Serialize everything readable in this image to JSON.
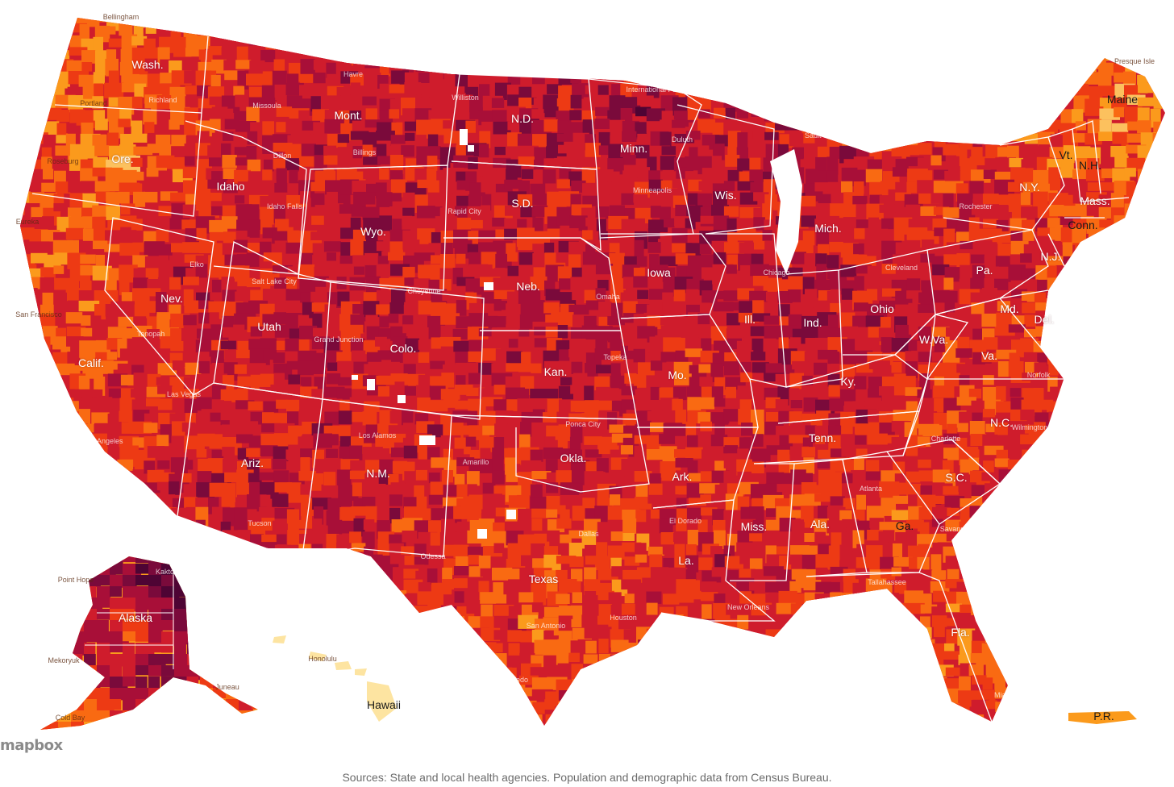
{
  "colors": {
    "c1": "#fde4a1",
    "c2": "#fcc15e",
    "c3": "#fb9a1c",
    "c4": "#f96a12",
    "c5": "#ed3a14",
    "c6": "#cf1c2c",
    "c7": "#a80f38",
    "c8": "#7a0a3b",
    "c9": "#4e0434",
    "border": "#ffffff"
  },
  "states": [
    {
      "key": "wa",
      "label": "Wash."
    },
    {
      "key": "or",
      "label": "Ore."
    },
    {
      "key": "ca",
      "label": "Calif."
    },
    {
      "key": "nv",
      "label": "Nev."
    },
    {
      "key": "id",
      "label": "Idaho"
    },
    {
      "key": "mt",
      "label": "Mont."
    },
    {
      "key": "wy",
      "label": "Wyo."
    },
    {
      "key": "ut",
      "label": "Utah"
    },
    {
      "key": "az",
      "label": "Ariz."
    },
    {
      "key": "co",
      "label": "Colo."
    },
    {
      "key": "nm",
      "label": "N.M."
    },
    {
      "key": "nd",
      "label": "N.D."
    },
    {
      "key": "sd",
      "label": "S.D."
    },
    {
      "key": "ne",
      "label": "Neb."
    },
    {
      "key": "ks",
      "label": "Kan."
    },
    {
      "key": "ok",
      "label": "Okla."
    },
    {
      "key": "tx",
      "label": "Texas"
    },
    {
      "key": "mn",
      "label": "Minn."
    },
    {
      "key": "ia",
      "label": "Iowa"
    },
    {
      "key": "mo",
      "label": "Mo."
    },
    {
      "key": "ar",
      "label": "Ark."
    },
    {
      "key": "la",
      "label": "La."
    },
    {
      "key": "wi",
      "label": "Wis."
    },
    {
      "key": "il",
      "label": "Ill."
    },
    {
      "key": "mi",
      "label": "Mich."
    },
    {
      "key": "in",
      "label": "Ind."
    },
    {
      "key": "oh",
      "label": "Ohio"
    },
    {
      "key": "ky",
      "label": "Ky."
    },
    {
      "key": "tn",
      "label": "Tenn."
    },
    {
      "key": "ms",
      "label": "Miss."
    },
    {
      "key": "al",
      "label": "Ala."
    },
    {
      "key": "ga",
      "label": "Ga."
    },
    {
      "key": "fl",
      "label": "Fla."
    },
    {
      "key": "sc",
      "label": "S.C."
    },
    {
      "key": "nc",
      "label": "N.C."
    },
    {
      "key": "va",
      "label": "Va."
    },
    {
      "key": "wv",
      "label": "W.Va."
    },
    {
      "key": "pa",
      "label": "Pa."
    },
    {
      "key": "ny",
      "label": "N.Y."
    },
    {
      "key": "vt",
      "label": "Vt."
    },
    {
      "key": "nh",
      "label": "N.H."
    },
    {
      "key": "me",
      "label": "Maine"
    },
    {
      "key": "ma",
      "label": "Mass."
    },
    {
      "key": "ct",
      "label": "Conn."
    },
    {
      "key": "nj",
      "label": "N.J."
    },
    {
      "key": "md",
      "label": "Md."
    },
    {
      "key": "de",
      "label": "Del."
    },
    {
      "key": "ak",
      "label": "Alaska"
    },
    {
      "key": "hi",
      "label": "Hawaii"
    },
    {
      "key": "pr",
      "label": "P.R."
    }
  ],
  "cities": [
    {
      "key": "bellingham",
      "label": "Bellingham"
    },
    {
      "key": "portland",
      "label": "Portland"
    },
    {
      "key": "richland",
      "label": "Richland"
    },
    {
      "key": "roseburg",
      "label": "Roseburg"
    },
    {
      "key": "eureka",
      "label": "Eureka"
    },
    {
      "key": "san-francisco",
      "label": "San Francisco"
    },
    {
      "key": "los-angeles",
      "label": "Los Angeles"
    },
    {
      "key": "las-vegas",
      "label": "Las Vegas"
    },
    {
      "key": "tonopah",
      "label": "Tonopah"
    },
    {
      "key": "elko",
      "label": "Elko"
    },
    {
      "key": "idaho-falls",
      "label": "Idaho Falls"
    },
    {
      "key": "missoula",
      "label": "Missoula"
    },
    {
      "key": "havre",
      "label": "Havre"
    },
    {
      "key": "billings",
      "label": "Billings"
    },
    {
      "key": "dillon",
      "label": "Dillon"
    },
    {
      "key": "salt-lake-city",
      "label": "Salt Lake City"
    },
    {
      "key": "grand-junction",
      "label": "Grand Junction"
    },
    {
      "key": "cheyenne",
      "label": "Cheyenne"
    },
    {
      "key": "tucson",
      "label": "Tucson"
    },
    {
      "key": "los-alamos",
      "label": "Los Alamos"
    },
    {
      "key": "williston",
      "label": "Williston"
    },
    {
      "key": "rapid-city",
      "label": "Rapid City"
    },
    {
      "key": "international-falls",
      "label": "International Falls"
    },
    {
      "key": "duluth",
      "label": "Duluth"
    },
    {
      "key": "minneapolis",
      "label": "Minneapolis"
    },
    {
      "key": "omaha",
      "label": "Omaha"
    },
    {
      "key": "topeka",
      "label": "Topeka"
    },
    {
      "key": "ponca-city",
      "label": "Ponca City"
    },
    {
      "key": "amarillo",
      "label": "Amarillo"
    },
    {
      "key": "odessa",
      "label": "Odessa"
    },
    {
      "key": "dallas",
      "label": "Dallas"
    },
    {
      "key": "san-antonio",
      "label": "San Antonio"
    },
    {
      "key": "houston",
      "label": "Houston"
    },
    {
      "key": "laredo",
      "label": "Laredo"
    },
    {
      "key": "el-dorado",
      "label": "El Dorado"
    },
    {
      "key": "new-orleans",
      "label": "New Orleans"
    },
    {
      "key": "chicago",
      "label": "Chicago"
    },
    {
      "key": "sault-ste-marie",
      "label": "Sault Ste. Marie"
    },
    {
      "key": "cleveland",
      "label": "Cleveland"
    },
    {
      "key": "rochester",
      "label": "Rochester"
    },
    {
      "key": "presque-isle",
      "label": "Presque Isle"
    },
    {
      "key": "norfolk",
      "label": "Norfolk"
    },
    {
      "key": "charlotte",
      "label": "Charlotte"
    },
    {
      "key": "wilmington",
      "label": "Wilmington"
    },
    {
      "key": "atlanta",
      "label": "Atlanta"
    },
    {
      "key": "savannah",
      "label": "Savannah"
    },
    {
      "key": "tallahassee",
      "label": "Tallahassee"
    },
    {
      "key": "miami",
      "label": "Miami"
    },
    {
      "key": "kaktovik",
      "label": "Kaktovik"
    },
    {
      "key": "point-hope",
      "label": "Point Hope"
    },
    {
      "key": "mekoryuk",
      "label": "Mekoryuk"
    },
    {
      "key": "juneau",
      "label": "Juneau"
    },
    {
      "key": "cold-bay",
      "label": "Cold Bay"
    },
    {
      "key": "honolulu",
      "label": "Honolulu"
    }
  ],
  "attribution": "mapbox",
  "source_note": "Sources: State and local health agencies. Population and demographic data from Census Bureau."
}
